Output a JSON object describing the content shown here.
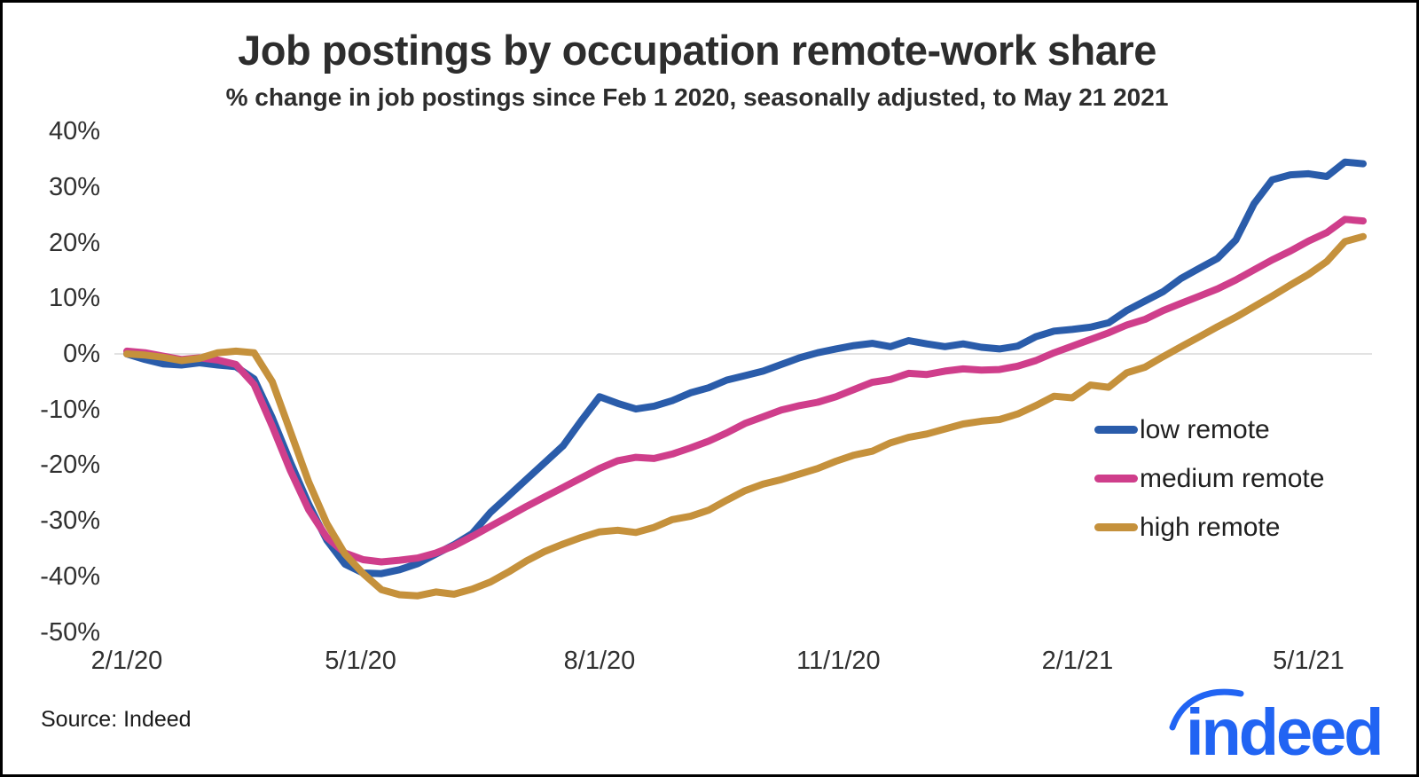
{
  "header": {
    "title": "Job postings by occupation remote-work share",
    "subtitle": "% change in job postings since Feb 1 2020, seasonally adjusted, to May 21 2021"
  },
  "chart_data": {
    "type": "line",
    "title": "Job postings by occupation remote-work share",
    "subtitle": "% change in job postings since Feb 1 2020, seasonally adjusted, to May 21 2021",
    "ylabel": "% change in job postings since Feb 1 2020",
    "ylim": [
      -50,
      40
    ],
    "grid": "zero-line-only",
    "zero_line_color": "#e2e2e2",
    "legend_position": "middle-right",
    "y_tick_labels": [
      "40%",
      "30%",
      "20%",
      "10%",
      "0%",
      "-10%",
      "-20%",
      "-30%",
      "-40%",
      "-50%"
    ],
    "y_tick_values": [
      40,
      30,
      20,
      10,
      0,
      -10,
      -20,
      -30,
      -40,
      -50
    ],
    "x_tick_labels": [
      "2/1/20",
      "5/1/20",
      "8/1/20",
      "11/1/20",
      "2/1/21",
      "5/1/21"
    ],
    "x_tick_week_index": [
      0,
      12.86,
      26,
      39.14,
      52.29,
      65.0
    ],
    "x": [
      "2/1/20",
      "2/8/20",
      "2/15/20",
      "2/22/20",
      "2/29/20",
      "3/7/20",
      "3/14/20",
      "3/21/20",
      "3/28/20",
      "4/4/20",
      "4/11/20",
      "4/18/20",
      "4/25/20",
      "5/2/20",
      "5/9/20",
      "5/16/20",
      "5/23/20",
      "5/30/20",
      "6/6/20",
      "6/13/20",
      "6/20/20",
      "6/27/20",
      "7/4/20",
      "7/11/20",
      "7/18/20",
      "7/25/20",
      "8/1/20",
      "8/8/20",
      "8/15/20",
      "8/22/20",
      "8/29/20",
      "9/5/20",
      "9/12/20",
      "9/19/20",
      "9/26/20",
      "10/3/20",
      "10/10/20",
      "10/17/20",
      "10/24/20",
      "10/31/20",
      "11/7/20",
      "11/14/20",
      "11/21/20",
      "11/28/20",
      "12/5/20",
      "12/12/20",
      "12/19/20",
      "12/26/20",
      "1/2/21",
      "1/9/21",
      "1/16/21",
      "1/23/21",
      "1/30/21",
      "2/6/21",
      "2/13/21",
      "2/20/21",
      "2/27/21",
      "3/6/21",
      "3/13/21",
      "3/20/21",
      "3/27/21",
      "4/3/21",
      "4/10/21",
      "4/17/21",
      "4/24/21",
      "5/1/21",
      "5/8/21",
      "5/15/21",
      "5/21/21"
    ],
    "series": [
      {
        "name": "low remote",
        "color": "#2a5caa",
        "values": [
          0,
          -1,
          -1.8,
          -2,
          -1.6,
          -2,
          -2.3,
          -4.5,
          -11.5,
          -19.5,
          -27,
          -33.5,
          -37.8,
          -39.4,
          -39.5,
          -38.8,
          -37.7,
          -36,
          -34.3,
          -32.3,
          -28.5,
          -25.5,
          -22.5,
          -19.5,
          -16.5,
          -12,
          -7.7,
          -8.9,
          -9.9,
          -9.4,
          -8.4,
          -7,
          -6.1,
          -4.7,
          -3.9,
          -3.1,
          -1.9,
          -0.7,
          0.2,
          0.9,
          1.5,
          1.9,
          1.3,
          2.4,
          1.8,
          1.3,
          1.8,
          1.2,
          0.9,
          1.4,
          3.1,
          4.1,
          4.4,
          4.8,
          5.6,
          7.8,
          9.5,
          11.2,
          13.6,
          15.4,
          17.2,
          20.5,
          27,
          31.3,
          32.2,
          32.4,
          31.9,
          34.5,
          34.2
        ]
      },
      {
        "name": "medium remote",
        "color": "#cf3e8b",
        "values": [
          0.5,
          0.2,
          -0.4,
          -1,
          -0.7,
          -1.1,
          -1.9,
          -5.5,
          -13,
          -21,
          -28,
          -33,
          -35.8,
          -37,
          -37.4,
          -37.1,
          -36.7,
          -35.8,
          -34.5,
          -32.8,
          -31,
          -29.2,
          -27.4,
          -25.7,
          -24,
          -22.3,
          -20.6,
          -19.2,
          -18.6,
          -18.8,
          -18,
          -16.9,
          -15.7,
          -14.2,
          -12.5,
          -11.3,
          -10.1,
          -9.3,
          -8.7,
          -7.7,
          -6.4,
          -5.1,
          -4.6,
          -3.5,
          -3.7,
          -3.1,
          -2.7,
          -2.9,
          -2.8,
          -2.2,
          -1.2,
          0.2,
          1.4,
          2.6,
          3.8,
          5.2,
          6.2,
          7.8,
          9.1,
          10.4,
          11.7,
          13.3,
          15.1,
          16.9,
          18.5,
          20.3,
          21.8,
          24.2,
          23.9
        ]
      },
      {
        "name": "high remote",
        "color": "#c5913c",
        "values": [
          0,
          -0.2,
          -0.6,
          -1.2,
          -0.8,
          0.2,
          0.5,
          0.2,
          -5,
          -14,
          -23,
          -30.5,
          -36,
          -39.5,
          -42.4,
          -43.3,
          -43.5,
          -42.8,
          -43.2,
          -42.3,
          -41,
          -39.2,
          -37.2,
          -35.5,
          -34.2,
          -33,
          -32,
          -31.7,
          -32.1,
          -31.2,
          -29.8,
          -29.2,
          -28.1,
          -26.3,
          -24.6,
          -23.4,
          -22.6,
          -21.6,
          -20.6,
          -19.3,
          -18.2,
          -17.5,
          -16,
          -15,
          -14.4,
          -13.5,
          -12.6,
          -12.1,
          -11.8,
          -10.8,
          -9.3,
          -7.6,
          -7.9,
          -5.6,
          -6,
          -3.4,
          -2.4,
          -0.5,
          1.3,
          3.1,
          4.9,
          6.6,
          8.5,
          10.4,
          12.4,
          14.3,
          16.6,
          20.2,
          21.1
        ]
      }
    ]
  },
  "legend": {
    "items": [
      {
        "label": "low remote",
        "color": "#2a5caa"
      },
      {
        "label": "medium remote",
        "color": "#cf3e8b"
      },
      {
        "label": "high remote",
        "color": "#c5913c"
      }
    ]
  },
  "footer": {
    "source": "Source: Indeed",
    "logo_text": "indeed",
    "logo_color": "#2164f3"
  }
}
